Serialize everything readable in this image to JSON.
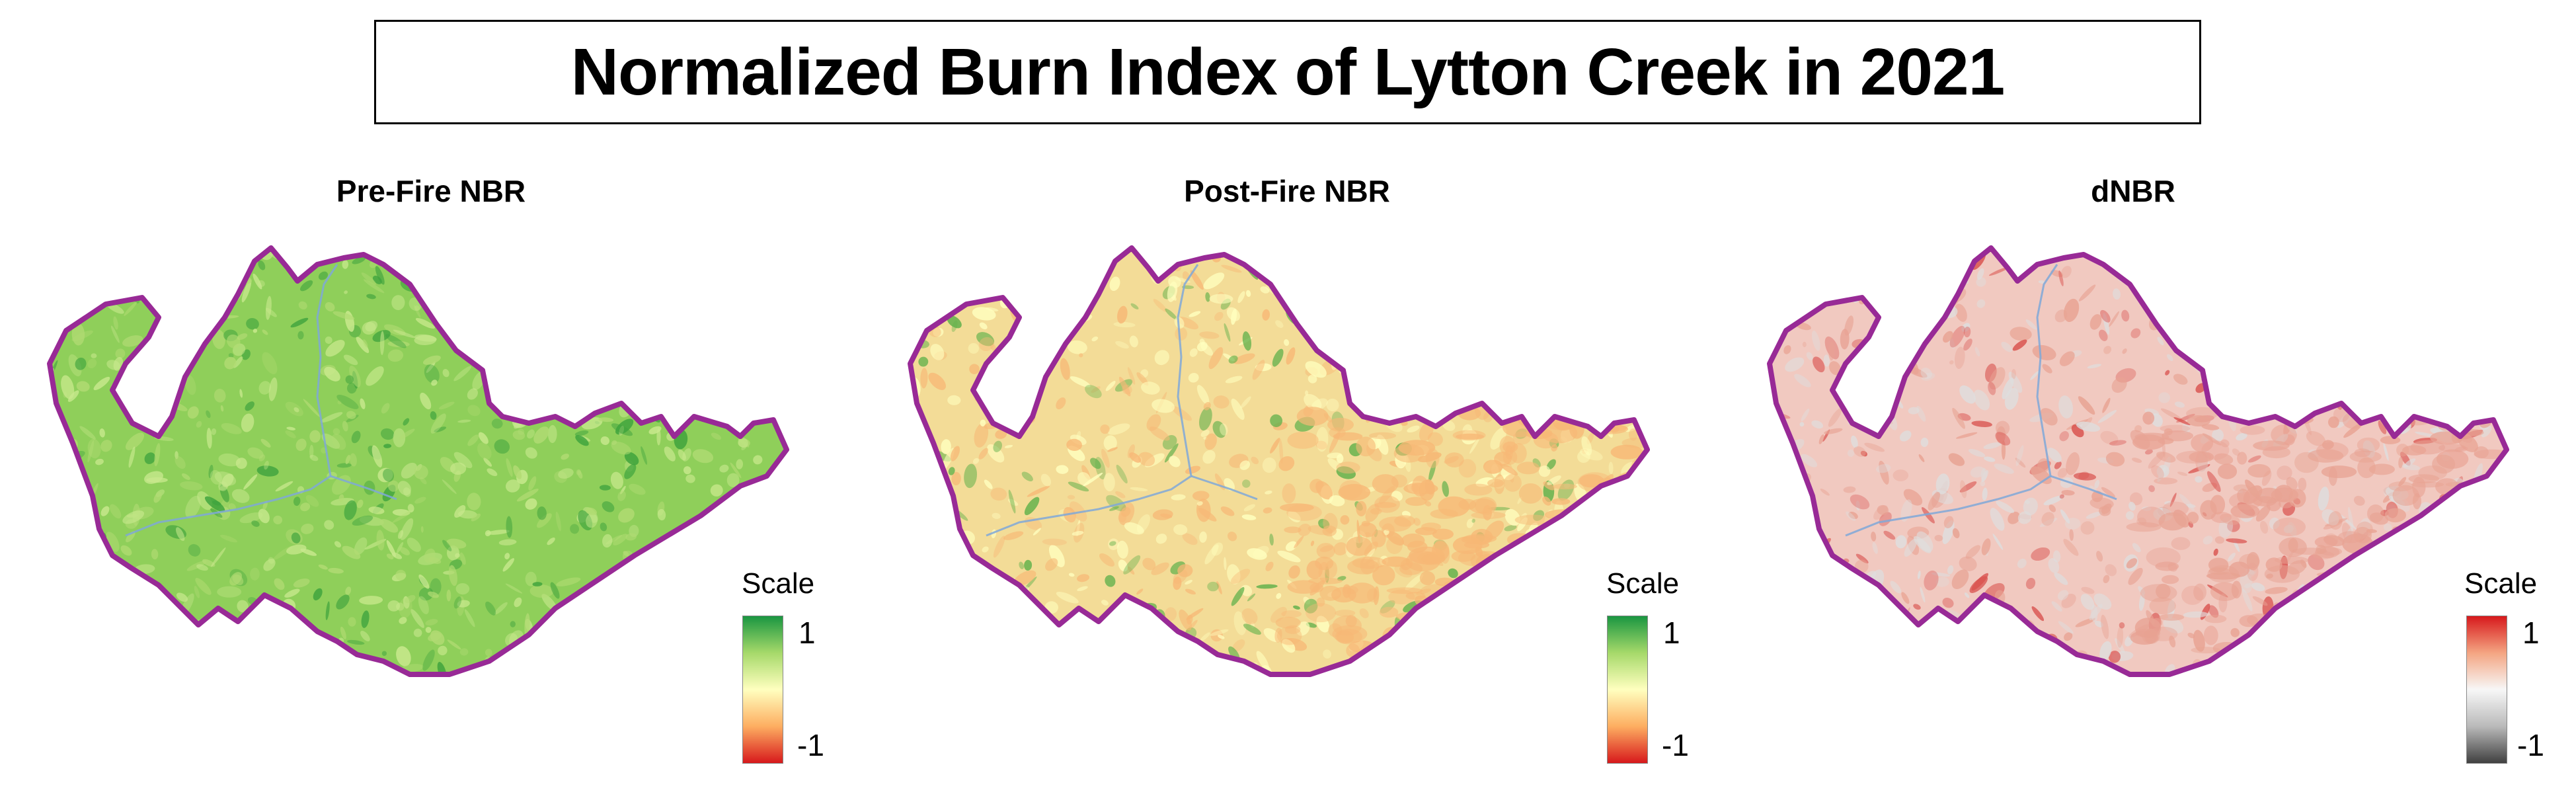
{
  "title": "Normalized Burn Index of Lytton Creek in 2021",
  "panels": [
    {
      "id": "pre",
      "title": "Pre-Fire NBR",
      "legend": {
        "title": "Scale",
        "max_label": "1",
        "min_label": "-1",
        "colors": [
          "#1a9641",
          "#a6d96a",
          "#ffffbf",
          "#fdae61",
          "#d7191c"
        ]
      },
      "fill": {
        "base": "#8fcf5a",
        "light": "#c9e98e",
        "dark": "#3fa33d",
        "mid": "#b1db73"
      }
    },
    {
      "id": "post",
      "title": "Post-Fire NBR",
      "legend": {
        "title": "Scale",
        "max_label": "1",
        "min_label": "-1",
        "colors": [
          "#1a9641",
          "#a6d96a",
          "#ffffbf",
          "#fdae61",
          "#d7191c"
        ]
      },
      "fill": {
        "base": "#f3dc97",
        "light": "#ffffbf",
        "dark": "#5fb04a",
        "mid": "#f7b876"
      }
    },
    {
      "id": "dnbr",
      "title": "dNBR",
      "legend": {
        "title": "Scale",
        "max_label": "1",
        "min_label": "-1",
        "colors": [
          "#d7191c",
          "#f4a582",
          "#f7f7f7",
          "#bababa",
          "#404040"
        ]
      },
      "fill": {
        "base": "#f1c9c0",
        "light": "#dedede",
        "dark": "#d9534f",
        "mid": "#e8a393"
      }
    }
  ],
  "colors": {
    "boundary": "#982a96",
    "river": "#7fa8d8"
  }
}
